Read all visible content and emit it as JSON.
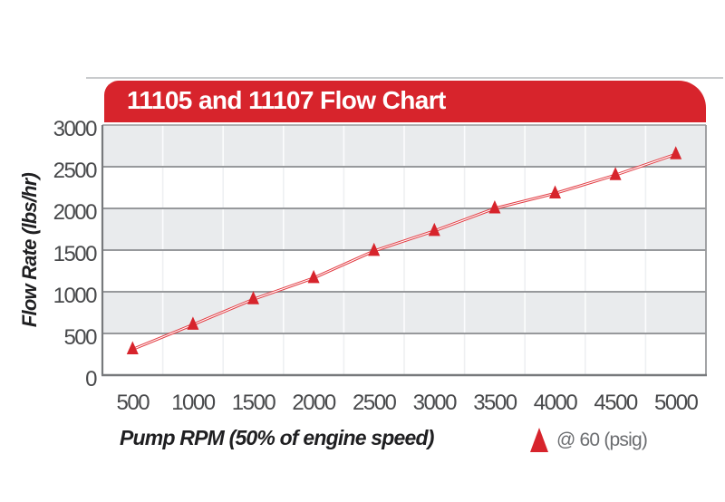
{
  "chart_data": {
    "type": "line",
    "title": "11105 and 11107 Flow Chart",
    "xlabel": "Pump RPM (50% of engine speed)",
    "ylabel": "Flow Rate (lbs/hr)",
    "x": [
      500,
      1000,
      1500,
      2000,
      2500,
      3000,
      3500,
      4000,
      4500,
      5000
    ],
    "series": [
      {
        "name": "@ 60 (psig)",
        "marker": "triangle-up",
        "values": [
          310,
          605,
          910,
          1165,
          1490,
          1730,
          2000,
          2180,
          2400,
          2650
        ]
      }
    ],
    "ylim": [
      0,
      3000
    ],
    "ytick_step": 500,
    "x_axis_style": "category",
    "grid": "on",
    "banding": "alternating-horizontal",
    "legend": {
      "label": "@ 60 (psig)",
      "position": "bottom-right"
    }
  },
  "colors": {
    "accent_red": "#d7242c",
    "line_red": "#e23a41",
    "band_gray": "#e9ebed",
    "band_white": "#ffffff",
    "grid_dark": "#97999c",
    "grid_light_on_gray": "#fbfcfd",
    "grid_light_on_white": "#eef0f2",
    "border_light": "#98999b",
    "border_dark": "#77797c",
    "tick_text": "#48494b",
    "title_text": "#ffffff",
    "legend_text": "#6b6d70"
  }
}
